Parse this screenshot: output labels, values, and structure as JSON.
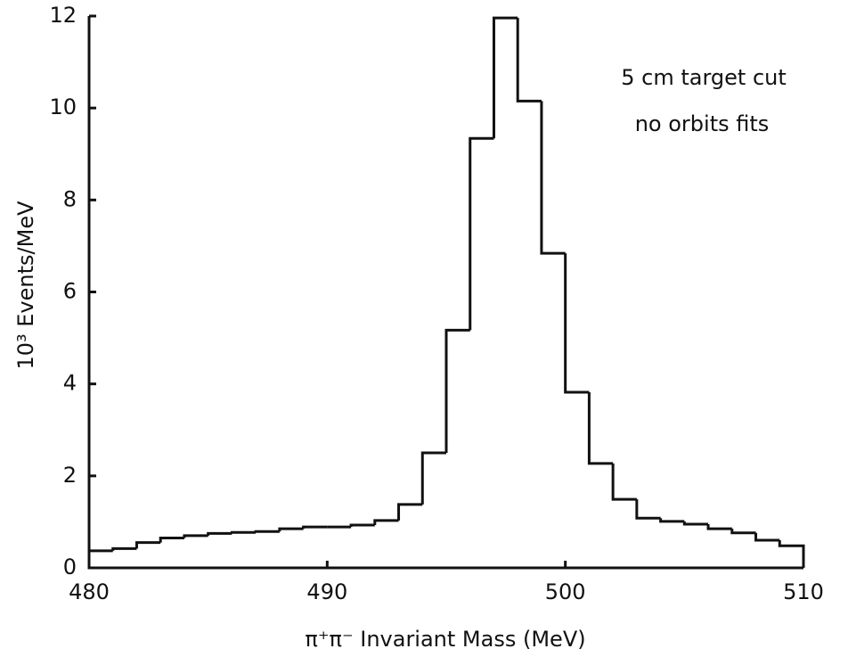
{
  "chart_data": {
    "type": "histogram",
    "x_label": "π⁺π⁻ Invariant Mass (MeV)",
    "y_label": "10³ Events/MeV",
    "annotations": [
      "5 cm target cut",
      "no orbits fits"
    ],
    "bins": [
      480,
      481,
      482,
      483,
      484,
      485,
      486,
      487,
      488,
      489,
      490,
      491,
      492,
      493,
      494,
      495,
      496,
      497,
      498,
      499,
      500,
      501,
      502,
      503,
      504,
      505,
      506,
      507,
      508,
      509,
      510
    ],
    "values": [
      0.37,
      0.42,
      0.55,
      0.65,
      0.7,
      0.75,
      0.77,
      0.79,
      0.85,
      0.89,
      0.89,
      0.93,
      1.03,
      1.38,
      2.5,
      5.17,
      9.34,
      11.96,
      10.15,
      6.84,
      3.82,
      2.27,
      1.49,
      1.08,
      1.01,
      0.95,
      0.85,
      0.76,
      0.6,
      0.48
    ],
    "color": "#111111",
    "xlim": [
      480,
      510
    ],
    "xticks": [
      480,
      490,
      500,
      510
    ],
    "ylim": [
      0,
      12
    ],
    "yticks": [
      0,
      2,
      4,
      6,
      8,
      10,
      12
    ]
  }
}
